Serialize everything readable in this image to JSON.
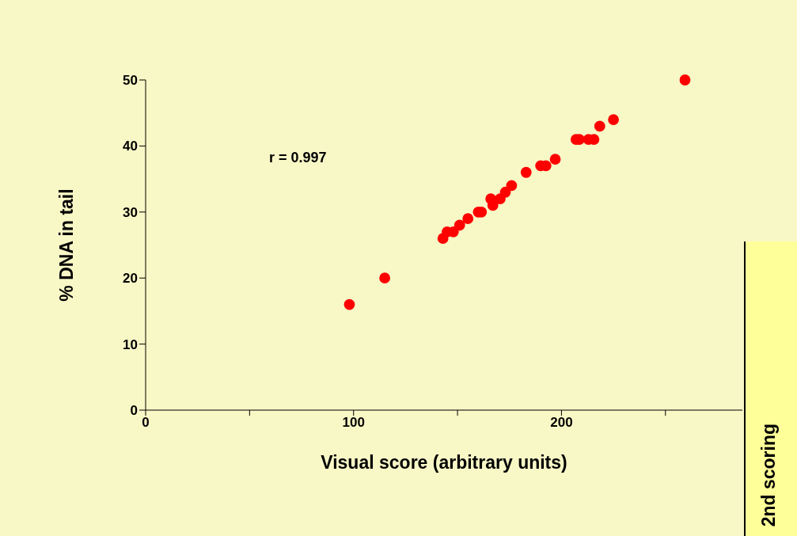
{
  "chart_data": {
    "type": "scatter",
    "xlabel": "Visual score (arbitrary units)",
    "ylabel": "% DNA in tail",
    "annotations": [
      "r = 0.997",
      "2nd scoring"
    ],
    "x": [
      98,
      115,
      143,
      145,
      148,
      151,
      155,
      160,
      161.5,
      166,
      167,
      170.5,
      173,
      176,
      183,
      190,
      192.5,
      197,
      207,
      208.6,
      213,
      215.6,
      218.4,
      225,
      259.4
    ],
    "series": [
      {
        "color": "#ff0000",
        "values": [
          16,
          20,
          26,
          27,
          27,
          28,
          29,
          30,
          30,
          32,
          31,
          32,
          33,
          34,
          36,
          37,
          37,
          38,
          41,
          41,
          41,
          41,
          43,
          44,
          50
        ]
      }
    ],
    "marker": "circle",
    "xlim": [
      0,
      287
    ],
    "xticks": [
      0,
      {
        "value": 50,
        "label": null
      },
      100,
      {
        "value": 150,
        "label": null
      },
      200,
      {
        "value": 250,
        "label": null
      }
    ],
    "ylim": [
      0,
      50
    ],
    "yticks": [
      0,
      10,
      20,
      30,
      40,
      50
    ]
  }
}
